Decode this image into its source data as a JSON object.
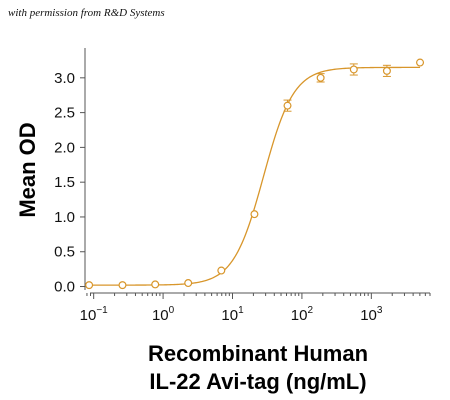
{
  "credit": "with permission from R&D Systems",
  "chart_data": {
    "type": "scatter",
    "title": "",
    "xlabel": [
      "Recombinant Human",
      "IL-22 Avi-tag (ng/mL)"
    ],
    "ylabel": "Mean OD",
    "x_scale": "log",
    "xlim": [
      0.075,
      7000
    ],
    "ylim": [
      -0.05,
      3.4
    ],
    "x_ticks": [
      {
        "value": 0.1,
        "base": "10",
        "exp": "−1"
      },
      {
        "value": 1,
        "base": "10",
        "exp": "0"
      },
      {
        "value": 10,
        "base": "10",
        "exp": "1"
      },
      {
        "value": 100,
        "base": "10",
        "exp": "2"
      },
      {
        "value": 1000,
        "base": "10",
        "exp": "3"
      }
    ],
    "y_ticks": [
      {
        "value": 0.0,
        "label": "0.0"
      },
      {
        "value": 0.5,
        "label": "0.5"
      },
      {
        "value": 1.0,
        "label": "1.0"
      },
      {
        "value": 1.5,
        "label": "1.5"
      },
      {
        "value": 2.0,
        "label": "2.0"
      },
      {
        "value": 2.5,
        "label": "2.5"
      },
      {
        "value": 3.0,
        "label": "3.0"
      }
    ],
    "series": [
      {
        "color": "#d8962b",
        "marker": "open-circle",
        "points": [
          {
            "x": 0.086,
            "y": 0.02,
            "err": 0.0
          },
          {
            "x": 0.26,
            "y": 0.02,
            "err": 0.0
          },
          {
            "x": 0.77,
            "y": 0.03,
            "err": 0.0
          },
          {
            "x": 2.3,
            "y": 0.05,
            "err": 0.0
          },
          {
            "x": 6.9,
            "y": 0.23,
            "err": 0.0
          },
          {
            "x": 20.7,
            "y": 1.04,
            "err": 0.0
          },
          {
            "x": 62,
            "y": 2.6,
            "err": 0.08
          },
          {
            "x": 186,
            "y": 3.0,
            "err": 0.06
          },
          {
            "x": 559,
            "y": 3.12,
            "err": 0.08
          },
          {
            "x": 1677,
            "y": 3.1,
            "err": 0.08
          },
          {
            "x": 5030,
            "y": 3.22,
            "err": 0.0
          }
        ],
        "fit": {
          "model": "4PL",
          "bottom": 0.02,
          "top": 3.15,
          "ec50": 28,
          "hill": 2.0
        }
      }
    ],
    "grid": false,
    "legend": "none"
  }
}
